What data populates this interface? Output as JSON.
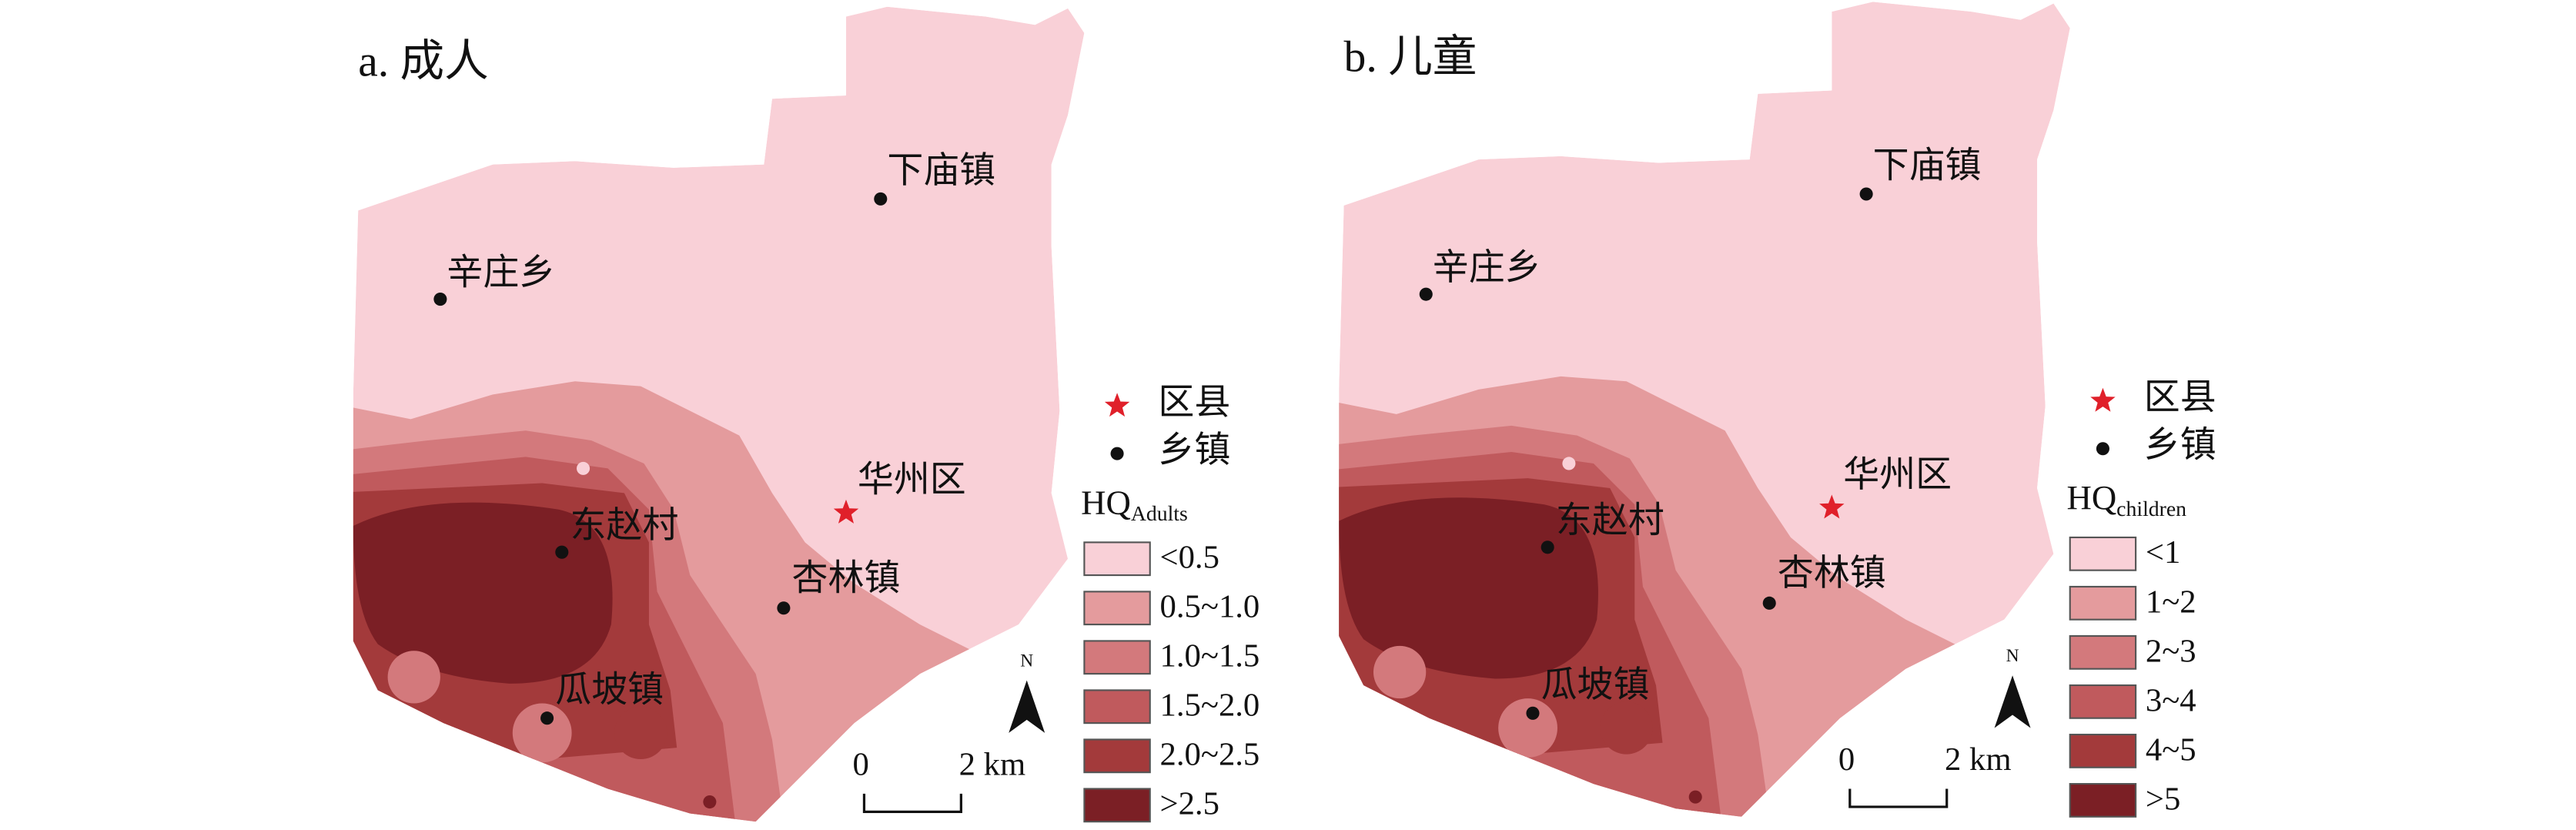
{
  "panels": [
    {
      "title": "a. 成人",
      "places": [
        {
          "label": "下庙镇",
          "symbol": "dot"
        },
        {
          "label": "辛庄乡",
          "symbol": "dot"
        },
        {
          "label": "华州区",
          "symbol": "star"
        },
        {
          "label": "东赵村",
          "symbol": "dot"
        },
        {
          "label": "杏林镇",
          "symbol": "dot"
        },
        {
          "label": "瓜坡镇",
          "symbol": "dot"
        }
      ],
      "legend": {
        "symbols": [
          {
            "label": "区县",
            "symbol": "star"
          },
          {
            "label": "乡镇",
            "symbol": "dot"
          }
        ],
        "title": "HQ",
        "subscript": "Adults",
        "classes": [
          {
            "label": "<0.5",
            "color": "#f9d0d7"
          },
          {
            "label": "0.5~1.0",
            "color": "#e49b9d"
          },
          {
            "label": "1.0~1.5",
            "color": "#d3797c"
          },
          {
            "label": "1.5~2.0",
            "color": "#c05a5d"
          },
          {
            "label": "2.0~2.5",
            "color": "#a33a3b"
          },
          {
            "label": ">2.5",
            "color": "#7b1f25"
          }
        ]
      },
      "scale_bar": {
        "start": "0",
        "end": "2 km"
      },
      "north": "N"
    },
    {
      "title": "b. 儿童",
      "places": [
        {
          "label": "下庙镇",
          "symbol": "dot"
        },
        {
          "label": "辛庄乡",
          "symbol": "dot"
        },
        {
          "label": "华州区",
          "symbol": "star"
        },
        {
          "label": "东赵村",
          "symbol": "dot"
        },
        {
          "label": "杏林镇",
          "symbol": "dot"
        },
        {
          "label": "瓜坡镇",
          "symbol": "dot"
        }
      ],
      "legend": {
        "symbols": [
          {
            "label": "区县",
            "symbol": "star"
          },
          {
            "label": "乡镇",
            "symbol": "dot"
          }
        ],
        "title": "HQ",
        "subscript": "children",
        "classes": [
          {
            "label": "<1",
            "color": "#f9d0d7"
          },
          {
            "label": "1~2",
            "color": "#e49b9d"
          },
          {
            "label": "2~3",
            "color": "#d3797c"
          },
          {
            "label": "3~4",
            "color": "#c05a5d"
          },
          {
            "label": "4~5",
            "color": "#a33a3b"
          },
          {
            "label": ">5",
            "color": "#7b1f25"
          }
        ]
      },
      "scale_bar": {
        "start": "0",
        "end": "2 km"
      },
      "north": "N"
    }
  ]
}
